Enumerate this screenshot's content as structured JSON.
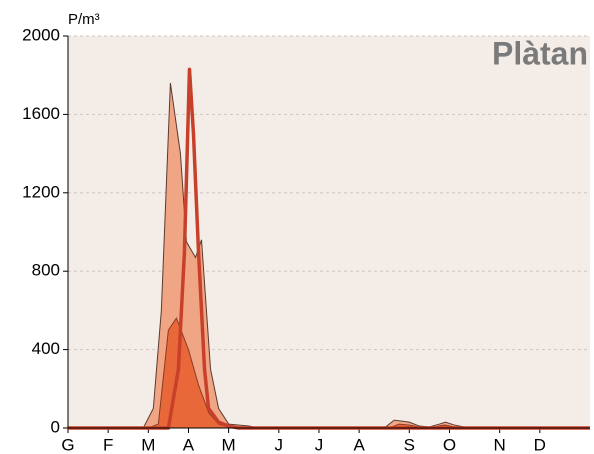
{
  "chart_data": {
    "type": "area",
    "title": "Plàtan",
    "y_label": "P/m³",
    "xlim": [
      0,
      52
    ],
    "xticks": [
      {
        "value": 0,
        "label": "G"
      },
      {
        "value": 4,
        "label": "F"
      },
      {
        "value": 8,
        "label": "M"
      },
      {
        "value": 12,
        "label": "A"
      },
      {
        "value": 16,
        "label": "M"
      },
      {
        "value": 21,
        "label": "J"
      },
      {
        "value": 25,
        "label": "J"
      },
      {
        "value": 29,
        "label": "A"
      },
      {
        "value": 34,
        "label": "S"
      },
      {
        "value": 38,
        "label": "O"
      },
      {
        "value": 43,
        "label": "N"
      },
      {
        "value": 47,
        "label": "D"
      }
    ],
    "ylim": [
      0,
      2000
    ],
    "yticks": [
      0,
      400,
      800,
      1200,
      1600,
      2000
    ],
    "grid": true,
    "series": [
      {
        "style": "area",
        "color": "#f0a585",
        "outline": "#5a3a30",
        "x": [
          0,
          7.5,
          8.5,
          9.3,
          10.2,
          11.2,
          11.8,
          12.7,
          13.3,
          14.2,
          15,
          16,
          18,
          19,
          31.5,
          32.5,
          34,
          35,
          36,
          37,
          37.6,
          38.5,
          40,
          52
        ],
        "values": [
          0,
          0,
          100,
          600,
          1760,
          1400,
          950,
          870,
          960,
          300,
          100,
          20,
          10,
          0,
          0,
          40,
          30,
          10,
          5,
          20,
          30,
          15,
          0,
          0
        ]
      },
      {
        "style": "area",
        "color": "#e8683a",
        "outline": "#8a3a20",
        "x": [
          0,
          8,
          9,
          10,
          10.8,
          12,
          13,
          14,
          15,
          16,
          17,
          32,
          33,
          34,
          35,
          36,
          37.5,
          38.5,
          39,
          52
        ],
        "values": [
          0,
          0,
          20,
          500,
          560,
          400,
          220,
          80,
          20,
          5,
          0,
          0,
          20,
          15,
          5,
          0,
          15,
          5,
          0,
          0
        ]
      },
      {
        "style": "line",
        "color": "#c8402a",
        "x": [
          0,
          10,
          11,
          11.6,
          12.1,
          12.5,
          13,
          13.6,
          14,
          15,
          16,
          17,
          52
        ],
        "values": [
          0,
          0,
          300,
          900,
          1830,
          1500,
          900,
          300,
          100,
          30,
          10,
          0,
          0
        ]
      }
    ]
  }
}
